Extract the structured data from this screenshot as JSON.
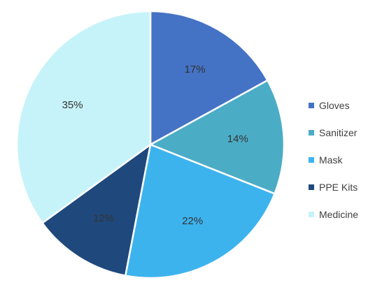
{
  "chart_data": {
    "type": "pie",
    "categories": [
      "Gloves",
      "Sanitizer",
      "Mask",
      "PPE Kits",
      "Medicine"
    ],
    "values": [
      17,
      14,
      22,
      12,
      35
    ],
    "labels": [
      "17%",
      "14%",
      "22%",
      "12%",
      "35%"
    ],
    "colors": [
      "#4472C4",
      "#4BACC6",
      "#3DB3EE",
      "#1F497D",
      "#C6F3F9"
    ],
    "title": "",
    "legend_position": "right"
  }
}
